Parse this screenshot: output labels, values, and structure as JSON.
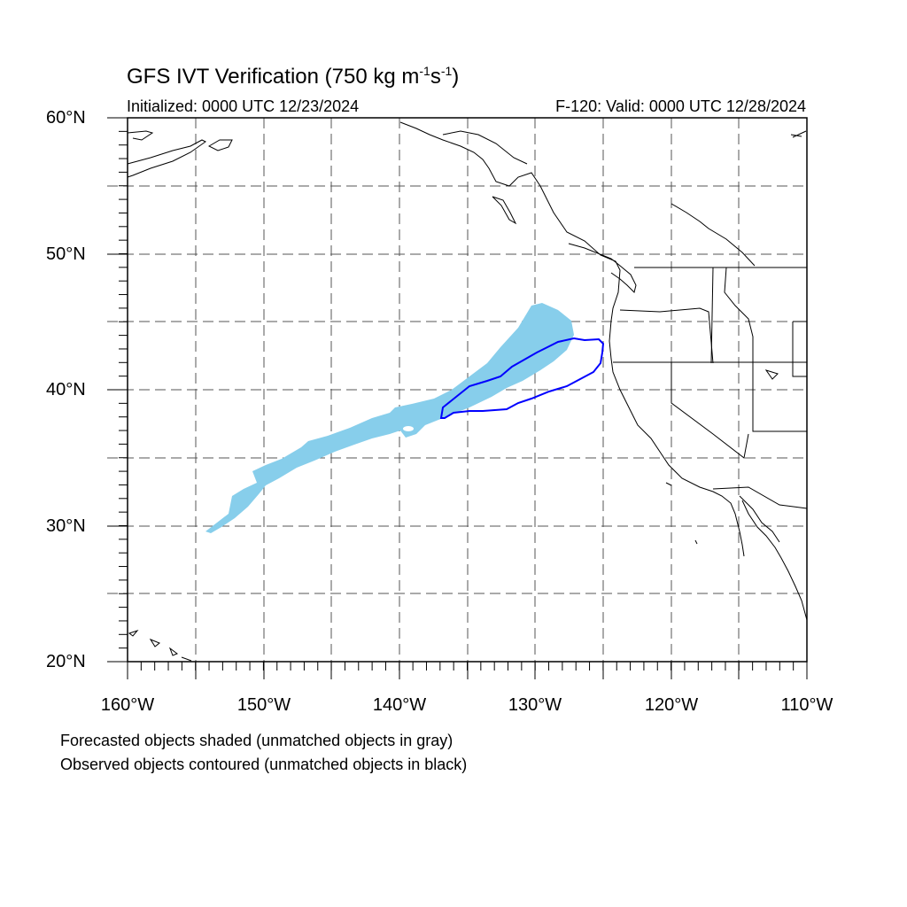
{
  "title": {
    "prefix": "GFS IVT Verification (750 kg m",
    "exp1": "-1",
    "mid": "s",
    "exp2": "-1",
    "suffix": ")"
  },
  "initialized": "Initialized: 0000 UTC 12/23/2024",
  "valid": "F-120: Valid: 0000 UTC 12/28/2024",
  "lat_labels": [
    "60°N",
    "50°N",
    "40°N",
    "30°N",
    "20°N"
  ],
  "lon_labels": [
    "160°W",
    "150°W",
    "140°W",
    "130°W",
    "120°W",
    "110°W"
  ],
  "notes": [
    "Forecasted objects shaded (unmatched objects in gray)",
    "Observed objects contoured (unmatched objects in black)"
  ],
  "map": {
    "lon_range": [
      -160,
      -110
    ],
    "lat_range": [
      20,
      60
    ],
    "gridlines": "dashed every 5°",
    "forecast_fill_color": "#87ceeb",
    "observed_contour_color": "#0000ff"
  }
}
